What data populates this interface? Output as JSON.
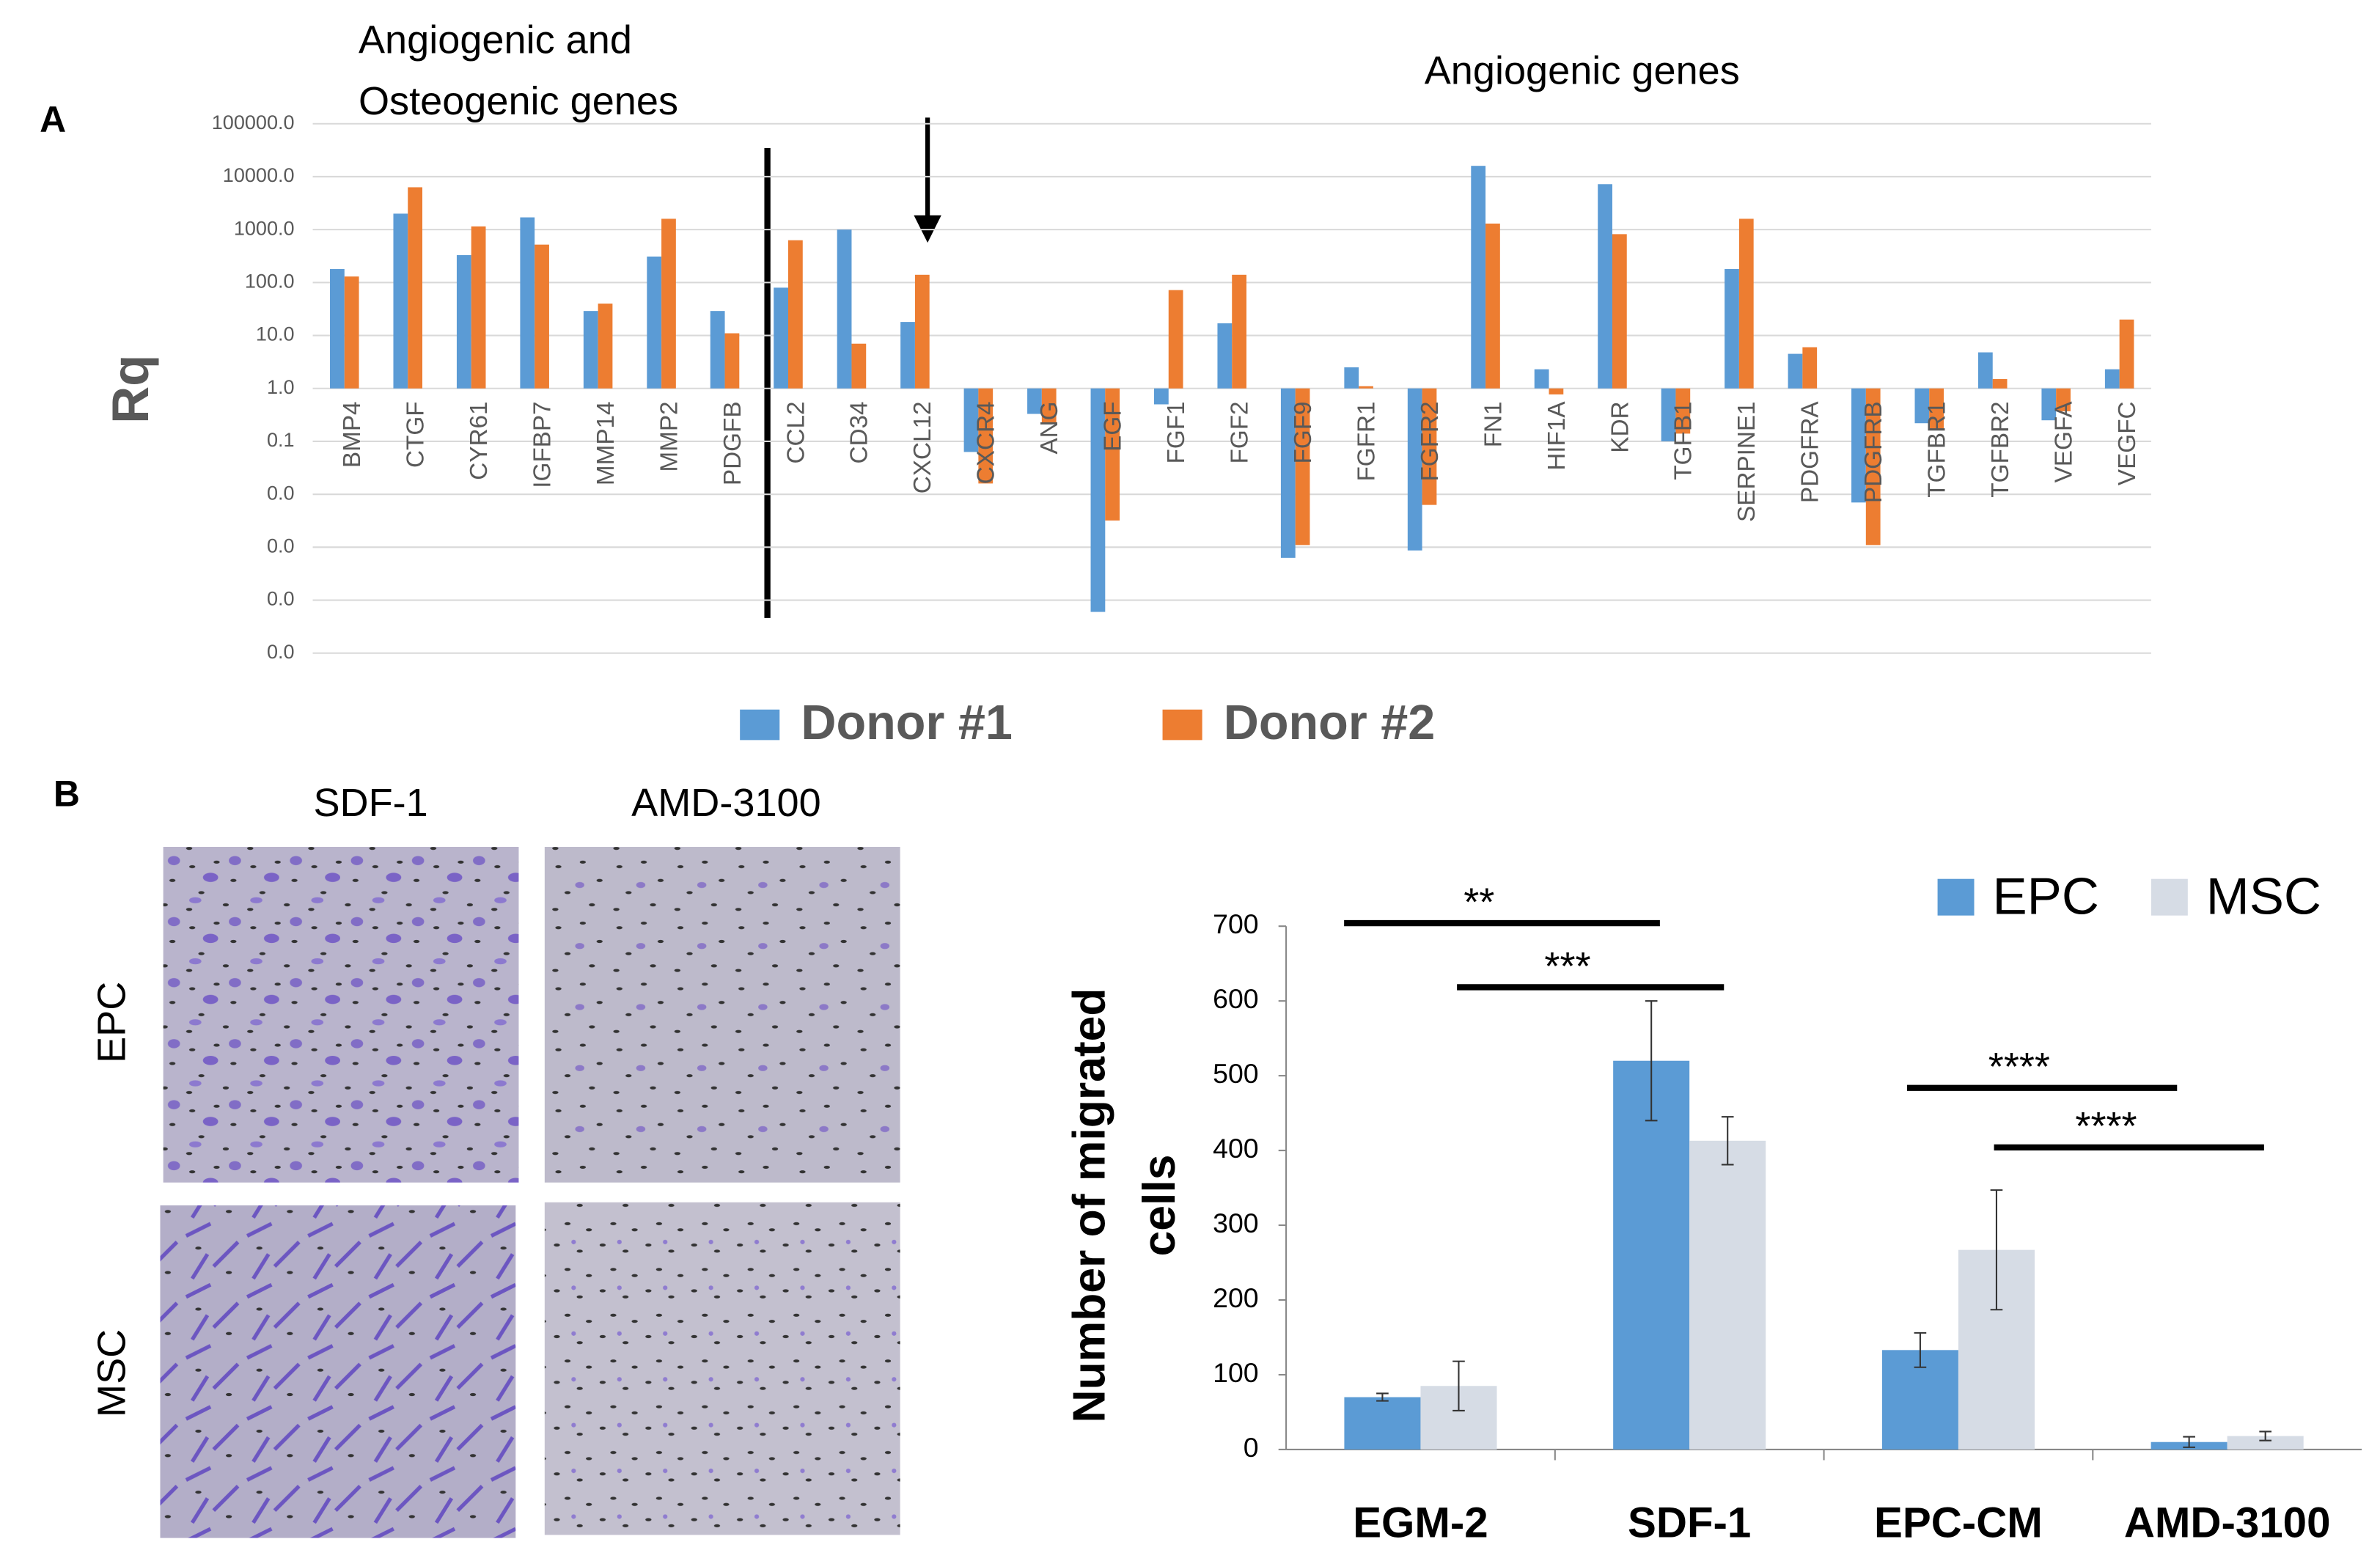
{
  "chart_data": [
    {
      "type": "bar",
      "log_scale": true,
      "grid": true,
      "annotations": [
        "Angiogenic  and",
        "Osteogenic genes",
        "Angiogenic  genes"
      ],
      "ylabel": "Rq",
      "ylim": [
        1e-05,
        100000
      ],
      "yticks": [
        {
          "value": 100000,
          "label": "100000.0"
        },
        {
          "value": 10000,
          "label": "10000.0"
        },
        {
          "value": 1000,
          "label": "1000.0"
        },
        {
          "value": 100,
          "label": "100.0"
        },
        {
          "value": 10,
          "label": "10.0"
        },
        {
          "value": 1,
          "label": "1.0"
        },
        {
          "value": 0.1,
          "label": "0.1"
        },
        {
          "value": 0.01,
          "label": "0.0"
        },
        {
          "value": 0.001,
          "label": "0.0"
        },
        {
          "value": 0.0001,
          "label": "0.0"
        },
        {
          "value": 1e-05,
          "label": "0.0"
        }
      ],
      "categories": [
        "BMP4",
        "CTGF",
        "CYR61",
        "IGFBP7",
        "MMP14",
        "MMP2",
        "PDGFB",
        "CCL2",
        "CD34",
        "CXCL12",
        "CXCR4",
        "ANG",
        "EGF",
        "FGF1",
        "FGF2",
        "FGF9",
        "FGFR1",
        "FGFR2",
        "FN1",
        "HIF1A",
        "KDR",
        "TGFB1",
        "SERPINE1",
        "PDGFRA",
        "PDGFRB",
        "TGFBR1",
        "TGFBR2",
        "VEGFA",
        "VEGFC"
      ],
      "series": [
        {
          "name": "Donor #1",
          "color": "#5b9bd5",
          "values": [
            180,
            2000,
            330,
            1700,
            29,
            310,
            29,
            80,
            1000,
            18,
            0.063,
            0.33,
            6e-05,
            0.5,
            17,
            0.00063,
            2.5,
            0.00087,
            16000,
            2.3,
            7200,
            0.1,
            180,
            4.5,
            0.007,
            0.22,
            4.8,
            0.25,
            2.3
          ]
        },
        {
          "name": "Donor #2",
          "color": "#ed7d31",
          "values": [
            130,
            6300,
            1150,
            520,
            40,
            1600,
            11,
            630,
            7,
            140,
            0.016,
            0.22,
            0.0032,
            72,
            140,
            0.0011,
            1.1,
            0.0063,
            1300,
            0.77,
            820,
            0.14,
            1600,
            6,
            0.0011,
            0.17,
            1.5,
            0.37,
            20
          ]
        }
      ]
    },
    {
      "type": "bar",
      "annotations": [
        "**",
        "***",
        "****",
        "****"
      ],
      "ylabel": [
        "Number of migrated",
        "cells"
      ],
      "ylim": [
        0,
        700
      ],
      "yticks": [
        0,
        100,
        200,
        300,
        400,
        500,
        600,
        700
      ],
      "categories": [
        "EGM-2",
        "SDF-1",
        "EPC-CM",
        "AMD-3100"
      ],
      "series": [
        {
          "name": "EPC",
          "color": "#5b9bd5",
          "values": [
            70,
            520,
            133,
            10
          ],
          "errors": [
            5,
            80,
            23,
            7
          ]
        },
        {
          "name": "MSC",
          "color": "#d6dce5",
          "values": [
            85,
            413,
            267,
            18
          ],
          "errors": [
            33,
            32,
            80,
            6
          ]
        }
      ]
    }
  ],
  "figure": {
    "panel_labels": [
      "A",
      "B"
    ],
    "image_columns": [
      "SDF-1",
      "AMD-3100"
    ],
    "image_rows": [
      "EPC",
      "MSC"
    ]
  }
}
